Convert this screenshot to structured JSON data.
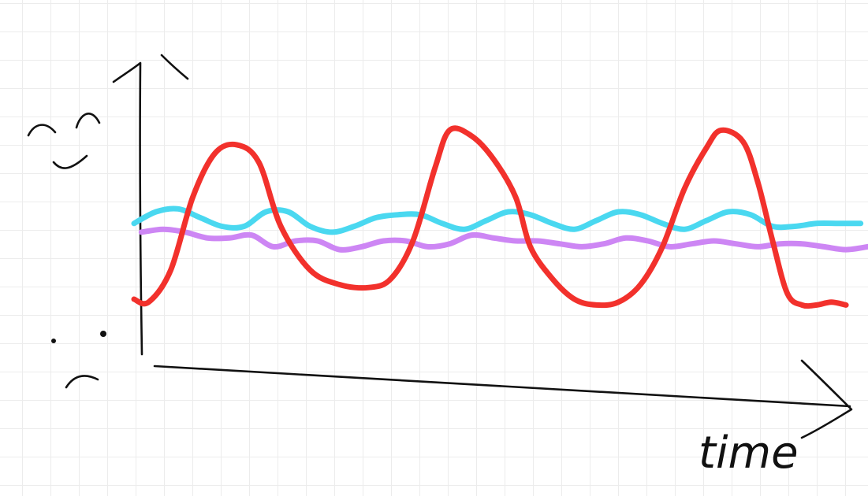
{
  "chart_data": {
    "type": "line",
    "title": "",
    "xlabel": "time",
    "ylabel": "",
    "y_top_icon": "happy-face-icon",
    "y_bottom_icon": "sad-face-icon",
    "xlim": [
      0,
      100
    ],
    "ylim": [
      0,
      100
    ],
    "grid": true,
    "series": [
      {
        "color": "#f2312c",
        "x": [
          0,
          2,
          5,
          8,
          11,
          14,
          17,
          20,
          24,
          28,
          32,
          35,
          38,
          41,
          43,
          46,
          49,
          52,
          54,
          57,
          60,
          63,
          66,
          69,
          72,
          75,
          78,
          80,
          83,
          85,
          87,
          89,
          91,
          93,
          95,
          97
        ],
        "y": [
          20,
          19,
          30,
          55,
          70,
          73,
          67,
          45,
          30,
          25,
          24,
          27,
          40,
          65,
          78,
          76,
          68,
          55,
          38,
          27,
          20,
          18,
          19,
          25,
          38,
          58,
          72,
          78,
          74,
          60,
          40,
          22,
          18,
          18,
          19,
          18
        ]
      },
      {
        "color": "#4ad8f0",
        "x": [
          0,
          3,
          6,
          9,
          12,
          15,
          18,
          21,
          24,
          27,
          30,
          33,
          36,
          39,
          42,
          45,
          48,
          51,
          54,
          57,
          60,
          63,
          66,
          69,
          72,
          75,
          78,
          81,
          84,
          87,
          90,
          93,
          96,
          99
        ],
        "y": [
          46,
          50,
          51,
          48,
          45,
          45,
          50,
          50,
          45,
          43,
          45,
          48,
          49,
          49,
          46,
          44,
          47,
          50,
          49,
          46,
          44,
          47,
          50,
          49,
          46,
          44,
          47,
          50,
          49,
          45,
          45,
          46,
          46,
          46
        ]
      },
      {
        "color": "#cd86f4",
        "x": [
          1,
          4,
          7,
          10,
          13,
          16,
          19,
          22,
          25,
          28,
          31,
          34,
          37,
          40,
          43,
          46,
          49,
          52,
          55,
          58,
          61,
          64,
          67,
          70,
          73,
          76,
          79,
          82,
          85,
          88,
          91,
          94,
          97,
          100
        ],
        "y": [
          43,
          44,
          43,
          41,
          41,
          42,
          38,
          40,
          40,
          37,
          38,
          40,
          40,
          38,
          39,
          42,
          41,
          40,
          40,
          39,
          38,
          39,
          41,
          40,
          38,
          39,
          40,
          39,
          38,
          39,
          39,
          38,
          37,
          38
        ]
      }
    ]
  }
}
